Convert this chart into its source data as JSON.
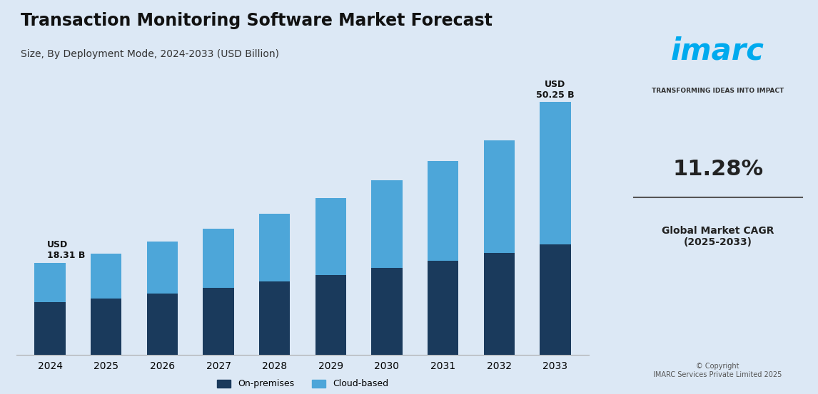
{
  "title": "Transaction Monitoring Software Market Forecast",
  "subtitle": "Size, By Deployment Mode, 2024-2033 (USD Billion)",
  "years": [
    2024,
    2025,
    2026,
    2027,
    2028,
    2029,
    2030,
    2031,
    2032,
    2033
  ],
  "on_premises": [
    10.5,
    11.2,
    12.2,
    13.3,
    14.5,
    15.8,
    17.2,
    18.7,
    20.3,
    22.0
  ],
  "cloud_based": [
    7.81,
    8.9,
    10.3,
    11.8,
    13.5,
    15.4,
    17.5,
    19.8,
    22.3,
    28.25
  ],
  "first_label": "USD\n18.31 B",
  "last_label": "USD\n50.25 B",
  "bar_color_onprem": "#1a3a5c",
  "bar_color_cloud": "#4da6d9",
  "bg_color": "#dce8f5",
  "legend_onprem": "On-premises",
  "legend_cloud": "Cloud-based",
  "cagr_text": "11.28%",
  "cagr_label": "Global Market CAGR\n(2025-2033)",
  "right_panel_bg": "#f0f4fa",
  "copyright_text": "© Copyright\nIMARC Services Private Limited 2025",
  "imarc_tagline": "TRANSFORMING IDEAS INTO IMPACT"
}
